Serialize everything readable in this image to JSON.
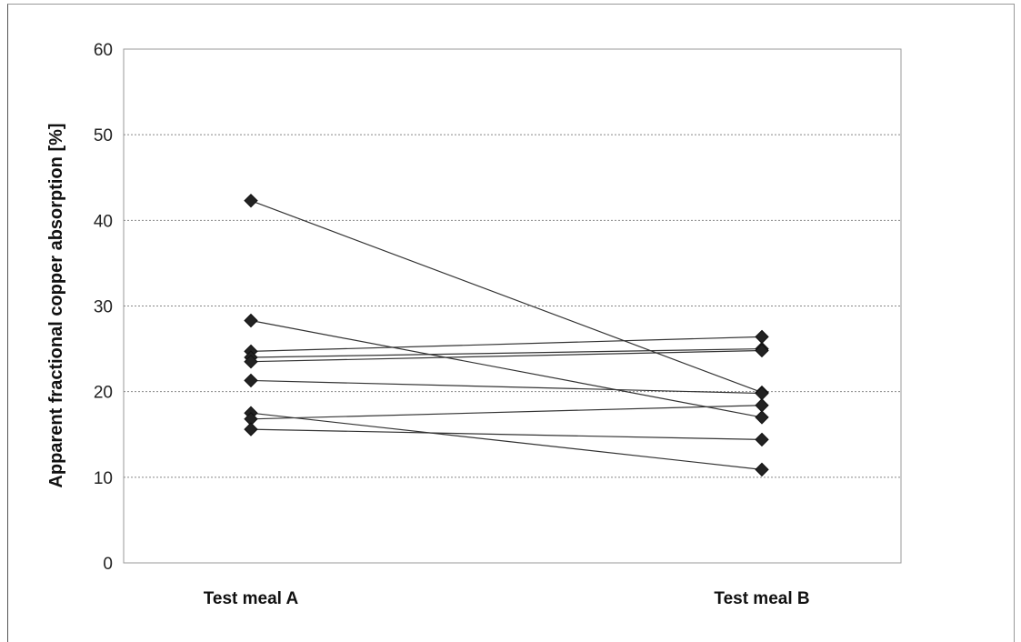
{
  "chart_data": {
    "type": "line",
    "categories": [
      "Test meal A",
      "Test meal B"
    ],
    "ylabel": "Apparent fractional copper absorption [%]",
    "xlabel": "",
    "title": "",
    "ylim": [
      0,
      60
    ],
    "yticks": [
      0,
      10,
      20,
      30,
      40,
      50,
      60
    ],
    "grid": true,
    "legend": "none",
    "marker": "diamond",
    "line_color": "#333333",
    "series": [
      {
        "values": [
          42.3,
          19.9
        ]
      },
      {
        "values": [
          28.3,
          17.0
        ]
      },
      {
        "values": [
          24.7,
          26.4
        ]
      },
      {
        "values": [
          24.0,
          25.0
        ]
      },
      {
        "values": [
          23.5,
          24.8
        ]
      },
      {
        "values": [
          21.3,
          19.8
        ]
      },
      {
        "values": [
          17.5,
          10.9
        ]
      },
      {
        "values": [
          16.8,
          18.4
        ]
      },
      {
        "values": [
          15.6,
          14.4
        ]
      }
    ]
  }
}
